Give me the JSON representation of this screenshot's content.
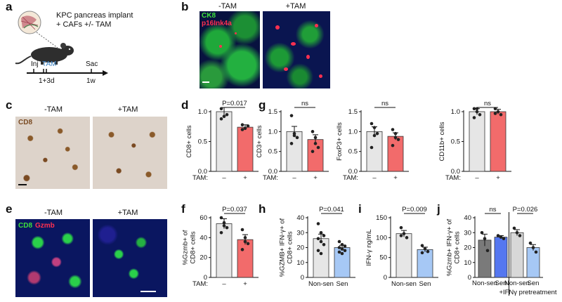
{
  "panels": {
    "a": "a",
    "b": "b",
    "c": "c",
    "d": "d",
    "e": "e",
    "f": "f",
    "g": "g",
    "h": "h",
    "i": "i",
    "j": "j"
  },
  "panel_a": {
    "title_line1": "KPC pancreas implant",
    "title_line2": "+ CAFs +/- TAM",
    "timeline": {
      "inj": "Inj",
      "tam": "TAM",
      "sac": "Sac",
      "t1": "1+3d",
      "t2": "1w"
    },
    "colors": {
      "tam": "#3b82c4"
    }
  },
  "panel_b": {
    "minus": "-TAM",
    "plus": "+TAM",
    "stain1": "CK8",
    "stain2": "p16Ink4a",
    "colors": {
      "stain1": "#3de03d",
      "stain2": "#ff3050"
    }
  },
  "panel_c": {
    "minus": "-TAM",
    "plus": "+TAM",
    "stain": "CD8"
  },
  "panel_e": {
    "minus": "-TAM",
    "plus": "+TAM",
    "stain1": "CD8",
    "stain2": "Gzmb"
  },
  "colors": {
    "control": "#e6e6e6",
    "treated": "#f26b6b",
    "sen_light": "#a6c8f5",
    "sen_bar": "#5577f0",
    "dark_gray": "#7a7a7a",
    "light_gray": "#d8d8d8"
  },
  "chart_data": [
    {
      "id": "d",
      "type": "bar",
      "ylabel": "CD8+ cells",
      "xtitle": "TAM:",
      "categories": [
        "–",
        "+"
      ],
      "values": [
        1.0,
        0.74
      ],
      "errors": [
        0.07,
        0.04
      ],
      "ylim": [
        0,
        1.0
      ],
      "yticks": [
        "0.0",
        "0.5",
        "1.0"
      ],
      "pvalue": "P=0.017",
      "points": [
        [
          1.05,
          0.92,
          0.95,
          0.88
        ],
        [
          0.78,
          0.72,
          0.76,
          0.7
        ]
      ]
    },
    {
      "id": "g1",
      "type": "bar",
      "ylabel": "CD3+ cells",
      "xtitle": "TAM:",
      "categories": [
        "–",
        "+"
      ],
      "values": [
        1.0,
        0.8
      ],
      "errors": [
        0.13,
        0.12
      ],
      "ylim": [
        0,
        1.5
      ],
      "yticks": [
        "0.0",
        "0.5",
        "1.0",
        "1.5"
      ],
      "pvalue": "ns",
      "points": [
        [
          1.4,
          0.95,
          0.85,
          0.7,
          0.9
        ],
        [
          1.0,
          0.85,
          0.6,
          0.5,
          0.7
        ]
      ]
    },
    {
      "id": "g2",
      "type": "bar",
      "ylabel": "FoxP3+ cells",
      "xtitle": "TAM:",
      "categories": [
        "–",
        "+"
      ],
      "values": [
        1.0,
        0.88
      ],
      "errors": [
        0.12,
        0.09
      ],
      "ylim": [
        0,
        1.5
      ],
      "yticks": [
        "0.0",
        "0.5",
        "1.0",
        "1.5"
      ],
      "pvalue": "ns",
      "points": [
        [
          1.2,
          1.1,
          0.95,
          0.6,
          0.9
        ],
        [
          1.05,
          0.95,
          0.8,
          0.65,
          0.85
        ]
      ]
    },
    {
      "id": "g3",
      "type": "bar",
      "ylabel": "CD11b+ cells",
      "xtitle": "TAM:",
      "categories": [
        "–",
        "+"
      ],
      "values": [
        1.0,
        1.0
      ],
      "errors": [
        0.05,
        0.04
      ],
      "ylim": [
        0,
        1.0
      ],
      "yticks": [
        "0.0",
        "0.5",
        "1.0"
      ],
      "pvalue": "ns",
      "points": [
        [
          1.1,
          1.0,
          0.95,
          0.9,
          1.05
        ],
        [
          1.05,
          1.0,
          0.95,
          0.97
        ]
      ]
    },
    {
      "id": "f",
      "type": "bar",
      "ylabel": "%Gzmb+ of CD8+ cells",
      "xtitle": "TAM:",
      "categories": [
        "–",
        "+"
      ],
      "values": [
        54,
        38
      ],
      "errors": [
        5,
        5
      ],
      "ylim": [
        0,
        60
      ],
      "yticks": [
        "0",
        "20",
        "40",
        "60"
      ],
      "pvalue": "P=0.037",
      "points": [
        [
          60,
          55,
          50,
          45,
          52
        ],
        [
          48,
          40,
          34,
          28,
          36
        ]
      ]
    },
    {
      "id": "h",
      "type": "bar",
      "ylabel": "%GZMB+ IFN-γ+ of CD8+ cells",
      "categories": [
        "Non-sen",
        "Sen"
      ],
      "values": [
        26,
        20
      ],
      "errors": [
        3,
        1.5
      ],
      "ylim": [
        0,
        40
      ],
      "yticks": [
        "0",
        "10",
        "20",
        "30",
        "40"
      ],
      "pvalue": "P=0.041",
      "points": [
        [
          36,
          30,
          28,
          26,
          24,
          22,
          18,
          16
        ],
        [
          24,
          22,
          21,
          20,
          19,
          18,
          17,
          16
        ]
      ]
    },
    {
      "id": "i",
      "type": "bar",
      "ylabel": "IFN-γ ng/mL",
      "categories": [
        "Non-sen",
        "Sen"
      ],
      "values": [
        110,
        70
      ],
      "errors": [
        8,
        6
      ],
      "ylim": [
        0,
        150
      ],
      "yticks": [
        "0",
        "50",
        "100",
        "150"
      ],
      "pvalue": "P=0.009",
      "points": [
        [
          125,
          110,
          100,
          105
        ],
        [
          80,
          72,
          65,
          62
        ]
      ]
    },
    {
      "id": "j",
      "type": "bar",
      "ylabel": "%Gzmb+ IFN-γ+ of CD8+ cells",
      "categories": [
        "Non-sen",
        "Sen",
        "Non-sen",
        "Sen"
      ],
      "values": [
        25,
        27,
        30,
        20
      ],
      "errors": [
        4,
        1,
        2,
        2
      ],
      "ylim": [
        0,
        40
      ],
      "yticks": [
        "0",
        "10",
        "20",
        "30",
        "40"
      ],
      "pvalue": [
        "ns",
        "P=0.026"
      ],
      "xnote": "+IFNγ pretreatment",
      "points": [
        [
          30,
          26,
          18
        ],
        [
          28,
          27,
          26
        ],
        [
          33,
          30,
          28
        ],
        [
          23,
          20,
          17
        ]
      ]
    }
  ]
}
